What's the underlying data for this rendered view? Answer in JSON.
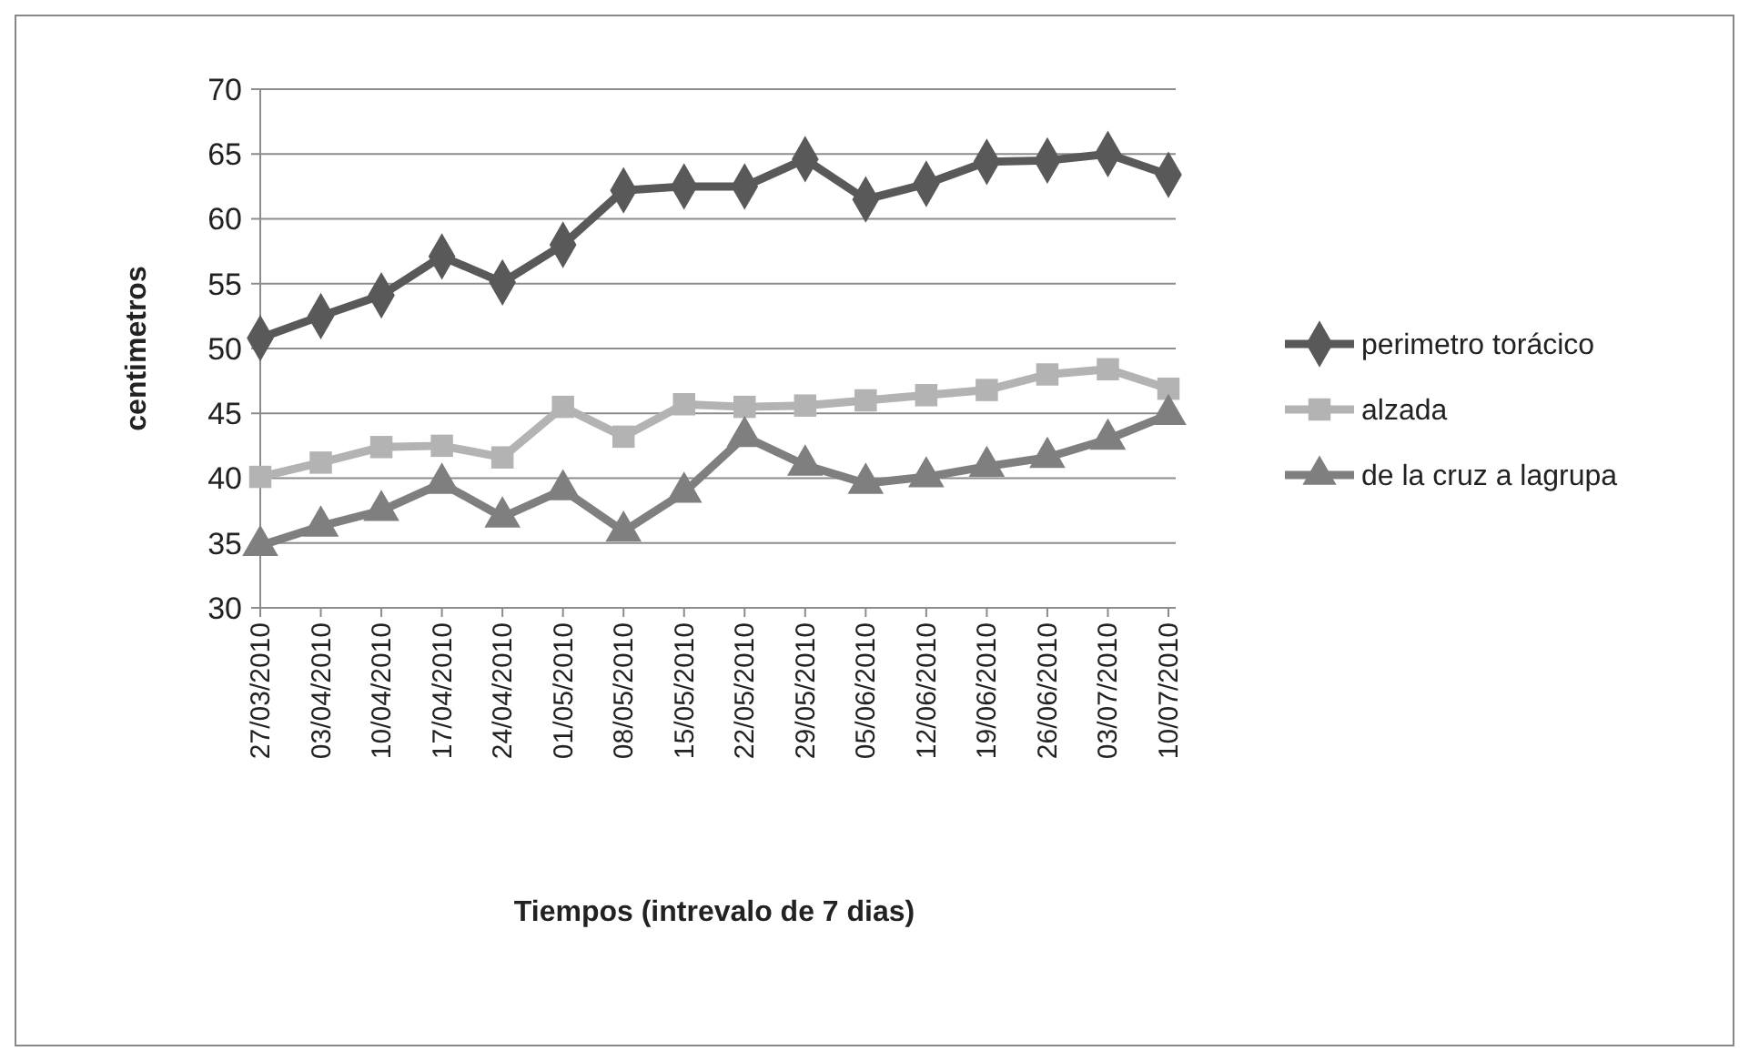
{
  "chart_data": {
    "type": "line",
    "xlabel": "Tiempos (intrevalo de 7 dias)",
    "ylabel": "centimetros",
    "categories": [
      "27/03/2010",
      "03/04/2010",
      "10/04/2010",
      "17/04/2010",
      "24/04/2010",
      "01/05/2010",
      "08/05/2010",
      "15/05/2010",
      "22/05/2010",
      "29/05/2010",
      "05/06/2010",
      "12/06/2010",
      "19/06/2010",
      "26/06/2010",
      "03/07/2010",
      "10/07/2010"
    ],
    "series": [
      {
        "name": "perimetro torácico",
        "color": "#595959",
        "marker": "diamond",
        "values": [
          50.8,
          52.5,
          54.1,
          57.1,
          55.1,
          58.0,
          62.2,
          62.5,
          62.5,
          64.6,
          61.5,
          62.7,
          64.4,
          64.5,
          65.0,
          63.4
        ]
      },
      {
        "name": "alzada",
        "color": "#b3b3b3",
        "marker": "square",
        "values": [
          40.1,
          41.2,
          42.4,
          42.5,
          41.6,
          45.5,
          43.2,
          45.7,
          45.5,
          45.6,
          46.0,
          46.4,
          46.8,
          48.0,
          48.4,
          46.9
        ]
      },
      {
        "name": "de la cruz a lagrupa",
        "color": "#7f7f7f",
        "marker": "triangle",
        "values": [
          34.8,
          36.3,
          37.5,
          39.6,
          37.0,
          39.1,
          35.9,
          38.9,
          43.2,
          41.0,
          39.6,
          40.1,
          40.9,
          41.6,
          43.0,
          44.9
        ]
      }
    ],
    "ylim": [
      30,
      70
    ],
    "yticks": [
      30,
      35,
      40,
      45,
      50,
      55,
      60,
      65,
      70
    ],
    "grid": "y",
    "legend": "right",
    "line_style": "solid"
  }
}
